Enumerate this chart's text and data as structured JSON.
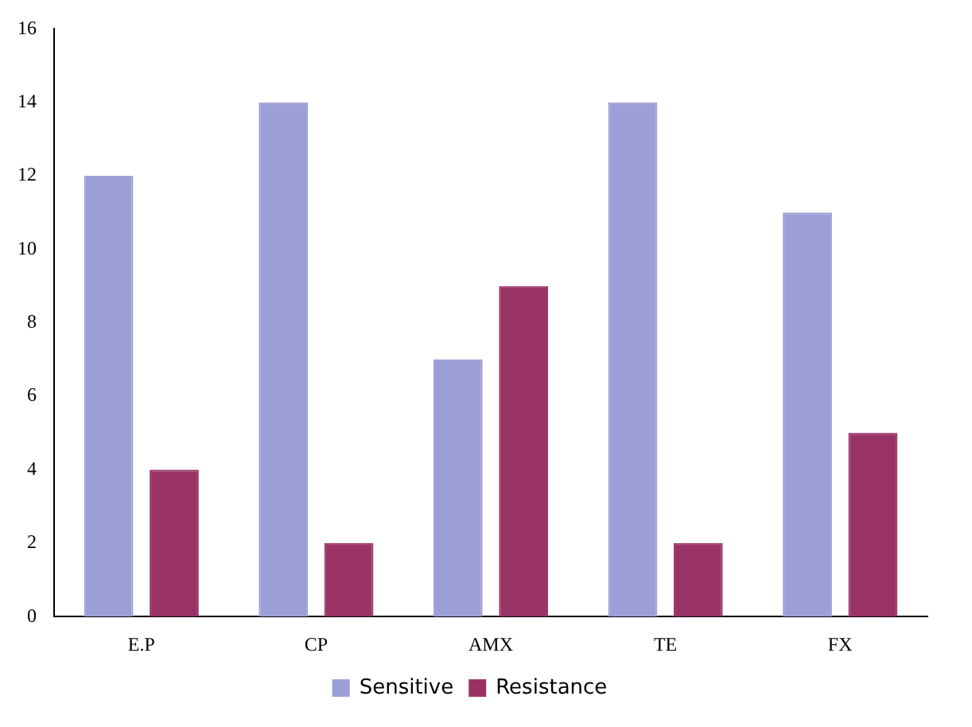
{
  "chart_data": {
    "type": "bar",
    "categories": [
      "E.P",
      "CP",
      "AMX",
      "TE",
      "FX"
    ],
    "series": [
      {
        "name": "Sensitive",
        "color": "#9b9fd6",
        "values": [
          12,
          14,
          7,
          14,
          11
        ]
      },
      {
        "name": "Resistance",
        "color": "#993366",
        "values": [
          4,
          2,
          9,
          2,
          5
        ]
      }
    ],
    "ylim": [
      0,
      16
    ],
    "yticks": [
      0,
      2,
      4,
      6,
      8,
      10,
      12,
      14,
      16
    ],
    "grid": false,
    "legend": "bottom"
  }
}
